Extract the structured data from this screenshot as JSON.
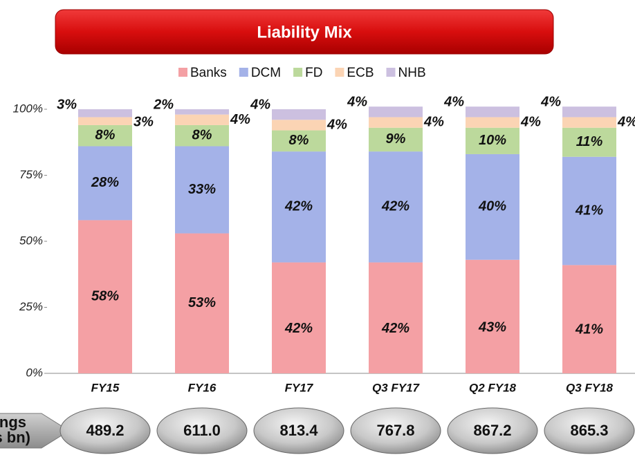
{
  "chart_data": {
    "type": "stacked_bar",
    "title": "Liability Mix",
    "categories": [
      "FY15",
      "FY16",
      "FY17",
      "Q3 FY17",
      "Q2 FY18",
      "Q3 FY18"
    ],
    "series": [
      {
        "name": "Banks",
        "color": "#f4a0a4",
        "values": [
          58,
          53,
          42,
          42,
          43,
          41
        ],
        "value_labels": [
          "58%",
          "53%",
          "42%",
          "42%",
          "43%",
          "41%"
        ]
      },
      {
        "name": "DCM",
        "color": "#a4b2e8",
        "values": [
          28,
          33,
          42,
          42,
          40,
          41
        ],
        "value_labels": [
          "28%",
          "33%",
          "42%",
          "42%",
          "40%",
          "41%"
        ]
      },
      {
        "name": "FD",
        "color": "#bcd99c",
        "values": [
          8,
          8,
          8,
          9,
          10,
          11
        ],
        "value_labels": [
          "8%",
          "8%",
          "8%",
          "9%",
          "10%",
          "11%"
        ]
      },
      {
        "name": "ECB",
        "color": "#fbd4b4",
        "values": [
          3,
          4,
          4,
          4,
          4,
          4
        ],
        "value_labels": [
          "3%",
          "4%",
          "4%",
          "4%",
          "4%",
          "4%"
        ]
      },
      {
        "name": "NHB",
        "color": "#ccc0e0",
        "values": [
          3,
          2,
          4,
          4,
          4,
          4
        ],
        "value_labels": [
          "3%",
          "2%",
          "4%",
          "4%",
          "4%",
          "4%"
        ]
      }
    ],
    "ylim": [
      0,
      100
    ],
    "yticks": [
      {
        "value": 0,
        "label": "0%"
      },
      {
        "value": 25,
        "label": "25%"
      },
      {
        "value": 50,
        "label": "50%"
      },
      {
        "value": 75,
        "label": "75%"
      },
      {
        "value": 100,
        "label": "100%"
      }
    ],
    "legend": "top",
    "borrowings": {
      "label": "Borrowings (Rs bn)",
      "values": [
        489.2,
        611.0,
        813.4,
        767.8,
        867.2,
        865.3
      ],
      "value_labels": [
        "489.2",
        "611.0",
        "813.4",
        "767.8",
        "867.2",
        "865.3"
      ]
    }
  }
}
